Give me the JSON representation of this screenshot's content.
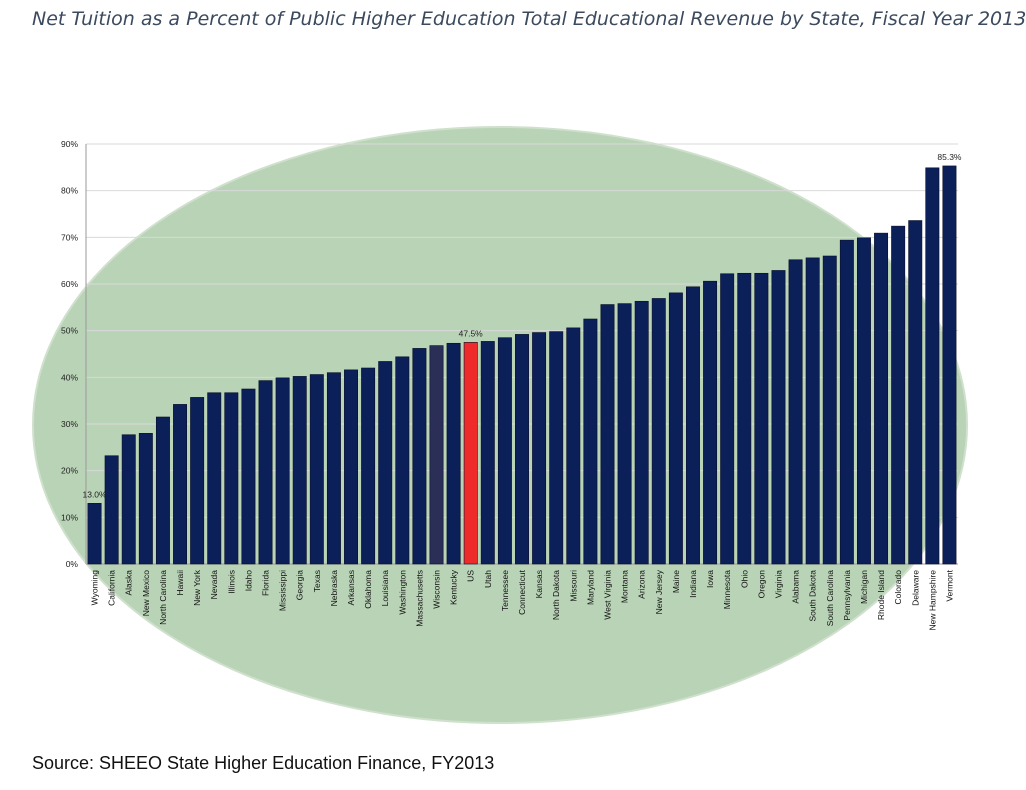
{
  "chart_data": {
    "type": "bar",
    "title": "Net Tuition as a Percent of Public Higher Education Total Educational Revenue by State, Fiscal Year 2013",
    "source": "Source: SHEEO State Higher Education Finance, FY2013",
    "xlabel": "",
    "ylabel": "",
    "ylim": [
      0,
      90
    ],
    "yticks": [
      "0%",
      "10%",
      "20%",
      "30%",
      "40%",
      "50%",
      "60%",
      "70%",
      "80%",
      "90%"
    ],
    "grid": true,
    "legend": "none",
    "categories": [
      "Wyoming",
      "California",
      "Alaska",
      "New Mexico",
      "North Carolina",
      "Hawaii",
      "New York",
      "Nevada",
      "Illinois",
      "Idaho",
      "Florida",
      "Mississippi",
      "Georgia",
      "Texas",
      "Nebraska",
      "Arkansas",
      "Oklahoma",
      "Louisiana",
      "Washington",
      "Massachusetts",
      "Wisconsin",
      "Kentucky",
      "US",
      "Utah",
      "Tennessee",
      "Connecticut",
      "Kansas",
      "North Dakota",
      "Missouri",
      "Maryland",
      "West Virginia",
      "Montana",
      "Arizona",
      "New Jersey",
      "Maine",
      "Indiana",
      "Iowa",
      "Minnesota",
      "Ohio",
      "Oregon",
      "Virginia",
      "Alabama",
      "South Dakota",
      "South Carolina",
      "Pennsylvania",
      "Michigan",
      "Rhode Island",
      "Colorado",
      "Delaware",
      "New Hampshire",
      "Vermont"
    ],
    "values": [
      13.0,
      23.2,
      27.7,
      28.0,
      31.5,
      34.2,
      35.7,
      36.7,
      36.7,
      37.5,
      39.3,
      39.9,
      40.2,
      40.6,
      41.0,
      41.6,
      42.0,
      43.4,
      44.4,
      46.2,
      46.8,
      47.3,
      47.5,
      47.7,
      48.5,
      49.2,
      49.6,
      49.8,
      50.6,
      52.5,
      55.6,
      55.8,
      56.3,
      56.9,
      58.1,
      59.4,
      60.6,
      62.2,
      62.3,
      62.3,
      62.9,
      65.2,
      65.6,
      66.0,
      69.4,
      69.9,
      70.9,
      72.4,
      73.6,
      84.9,
      85.3
    ],
    "data_labels": [
      {
        "category": "Wyoming",
        "text": "13.0%"
      },
      {
        "category": "US",
        "text": "47.5%"
      },
      {
        "category": "Vermont",
        "text": "85.3%"
      }
    ],
    "colors": {
      "bar": "#0b1f58",
      "bar_highlight": "#ee2a2a",
      "bar_wisconsin": "#2b2f57",
      "ellipse_fill": "#b9d3b6",
      "ellipse_stroke": "#cfe0cc",
      "gridline": "#d9d9d9",
      "axis": "#9a9a9a",
      "title": "#3b4a5e"
    },
    "highlight_category": "US"
  }
}
